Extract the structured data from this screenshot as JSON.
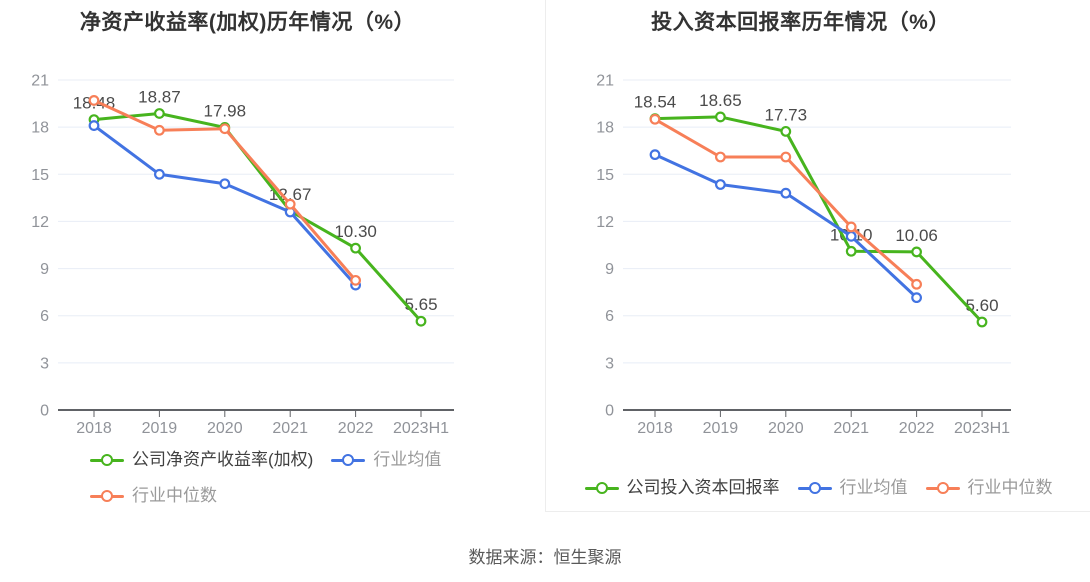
{
  "source_note": "数据来源：恒生聚源",
  "colors": {
    "company": "#47b41e",
    "industry_mean": "#4273e2",
    "industry_median": "#f77f58",
    "grid": "#e8edf6",
    "axis": "#606266",
    "tick_label": "#909399",
    "point_label": "#4b4b4b",
    "title": "#333333",
    "legend_primary": "#404040",
    "legend_secondary": "#9a9a9a",
    "panel_border": "#ededed",
    "source_text": "#595959"
  },
  "chart_data": [
    {
      "type": "line",
      "title": "净资产收益率(加权)历年情况（%）",
      "xlabel": "",
      "ylabel": "",
      "ylim": [
        0,
        21
      ],
      "y_ticks": [
        0,
        3,
        6,
        9,
        12,
        15,
        18,
        21
      ],
      "grid": true,
      "legend_position": "bottom",
      "categories": [
        "2018",
        "2019",
        "2020",
        "2021",
        "2022",
        "2023H1"
      ],
      "series": [
        {
          "name": "公司净资产收益率(加权)",
          "role": "company",
          "values": [
            18.48,
            18.87,
            17.98,
            12.67,
            10.3,
            5.65
          ],
          "point_labels": [
            "18.48",
            "18.87",
            "17.98",
            "12.67",
            "10.30",
            "5.65"
          ]
        },
        {
          "name": "行业均值",
          "role": "industry_mean",
          "values": [
            18.1,
            15.0,
            14.4,
            12.6,
            7.95,
            null
          ],
          "point_labels": []
        },
        {
          "name": "行业中位数",
          "role": "industry_median",
          "values": [
            19.7,
            17.8,
            17.9,
            13.1,
            8.25,
            null
          ],
          "point_labels": []
        }
      ],
      "legend_rows": [
        [
          0,
          1
        ],
        [
          2
        ]
      ]
    },
    {
      "type": "line",
      "title": "投入资本回报率历年情况（%）",
      "xlabel": "",
      "ylabel": "",
      "ylim": [
        0,
        21
      ],
      "y_ticks": [
        0,
        3,
        6,
        9,
        12,
        15,
        18,
        21
      ],
      "grid": true,
      "legend_position": "bottom",
      "categories": [
        "2018",
        "2019",
        "2020",
        "2021",
        "2022",
        "2023H1"
      ],
      "series": [
        {
          "name": "公司投入资本回报率",
          "role": "company",
          "values": [
            18.54,
            18.65,
            17.73,
            10.1,
            10.06,
            5.6
          ],
          "point_labels": [
            "18.54",
            "18.65",
            "17.73",
            "10.10",
            "10.06",
            "5.60"
          ]
        },
        {
          "name": "行业均值",
          "role": "industry_mean",
          "values": [
            16.25,
            14.35,
            13.8,
            11.05,
            7.15,
            null
          ],
          "point_labels": []
        },
        {
          "name": "行业中位数",
          "role": "industry_median",
          "values": [
            18.5,
            16.1,
            16.1,
            11.65,
            8.0,
            null
          ],
          "point_labels": []
        }
      ],
      "legend_rows": [
        [
          0,
          1,
          2
        ]
      ]
    }
  ]
}
